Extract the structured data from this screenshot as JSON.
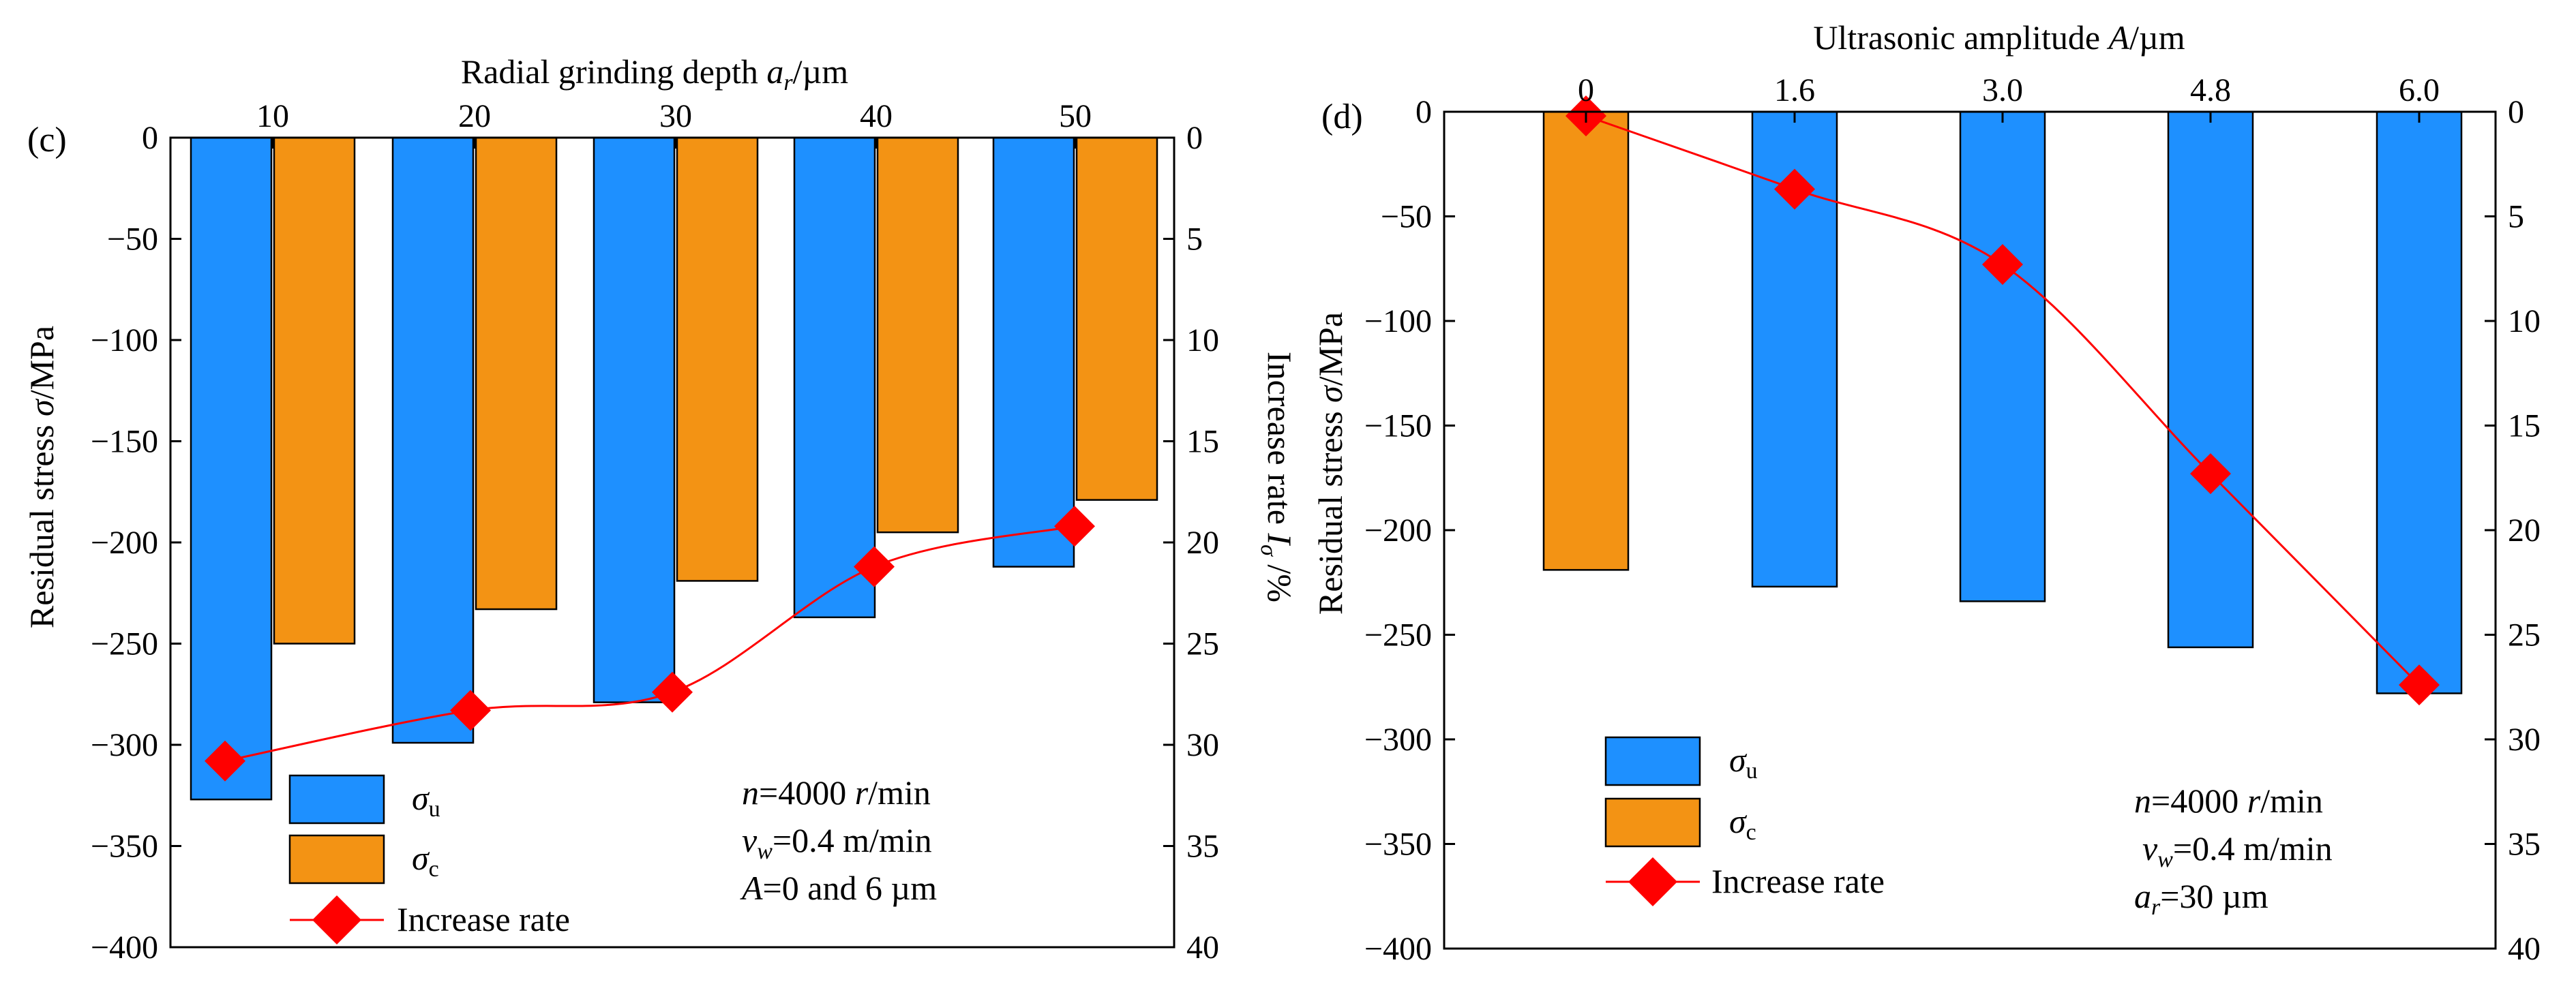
{
  "chart_data": [
    {
      "panel_label": "(c)",
      "type": "bar",
      "title": "",
      "top_xlabel_parts": [
        "Radial grinding depth ",
        "a",
        "r",
        "/µm"
      ],
      "categories": [
        "10",
        "20",
        "30",
        "40",
        "50"
      ],
      "series": [
        {
          "name": "σu",
          "color": "#1E90FF",
          "values": [
            -327,
            -299,
            -279,
            -237,
            -212
          ]
        },
        {
          "name": "σc",
          "color": "#F39314",
          "values": [
            -250,
            -233,
            -219,
            -195,
            -179
          ]
        }
      ],
      "line_series": {
        "name": "Increase rate",
        "color": "#FF0000",
        "values": [
          30.8,
          28.3,
          27.4,
          21.2,
          19.2
        ]
      },
      "ylabel_left_parts": [
        "Residual stress ",
        "σ",
        "/MPa"
      ],
      "ylabel_right_parts": [
        "Increase rate ",
        "I",
        "σ",
        " /%"
      ],
      "ylim_left": [
        -400,
        0
      ],
      "ylim_right": [
        40,
        0
      ],
      "yticks_left": [
        "0",
        "−50",
        "−100",
        "−150",
        "−200",
        "−250",
        "−300",
        "−350",
        "−400"
      ],
      "yticks_right": [
        "0",
        "5",
        "10",
        "15",
        "20",
        "25",
        "30",
        "35",
        "40"
      ],
      "legend": [
        {
          "label_main": "σ",
          "label_sub": "u"
        },
        {
          "label_main": "σ",
          "label_sub": "c"
        },
        {
          "label": "Increase rate"
        }
      ],
      "annotation": [
        {
          "var": "n",
          "eq": "=4000 ",
          "unit_it": "r",
          "rest": "/min"
        },
        {
          "var": "v",
          "sub": "w",
          "eq": "=0.4 m/min"
        },
        {
          "var": "A",
          "eq": "=0 and 6 µm"
        }
      ]
    },
    {
      "panel_label": "(d)",
      "type": "bar",
      "title": "",
      "top_xlabel_parts": [
        "Ultrasonic amplitude ",
        "A",
        "/µm"
      ],
      "categories": [
        "0",
        "1.6",
        "3.0",
        "4.8",
        "6.0"
      ],
      "bar_colors": [
        "#F39314",
        "#1E90FF",
        "#1E90FF",
        "#1E90FF",
        "#1E90FF"
      ],
      "values": [
        -219,
        -227,
        -234,
        -256,
        -278
      ],
      "line_series": {
        "name": "Increase rate",
        "color": "#FF0000",
        "values": [
          0.2,
          3.7,
          7.3,
          17.3,
          27.4
        ]
      },
      "ylabel_left_parts": [
        "Residual stress ",
        "σ",
        "/MPa"
      ],
      "ylim_left": [
        -400,
        0
      ],
      "ylim_right": [
        40,
        0
      ],
      "yticks_left": [
        "0",
        "−50",
        "−100",
        "−150",
        "−200",
        "−250",
        "−300",
        "−350",
        "−400"
      ],
      "yticks_right": [
        "0",
        "5",
        "10",
        "15",
        "20",
        "25",
        "30",
        "35",
        "40"
      ],
      "legend": [
        {
          "label_main": "σ",
          "label_sub": "u"
        },
        {
          "label_main": "σ",
          "label_sub": "c"
        },
        {
          "label": "Increase rate"
        }
      ],
      "annotation": [
        {
          "var": "n",
          "eq": "=4000 ",
          "unit_it": "r",
          "rest": "/min"
        },
        {
          "var": "v",
          "sub": "w",
          "eq": "=0.4 m/min"
        },
        {
          "var": "a",
          "sub": "r",
          "eq": "=30 µm"
        }
      ]
    }
  ]
}
